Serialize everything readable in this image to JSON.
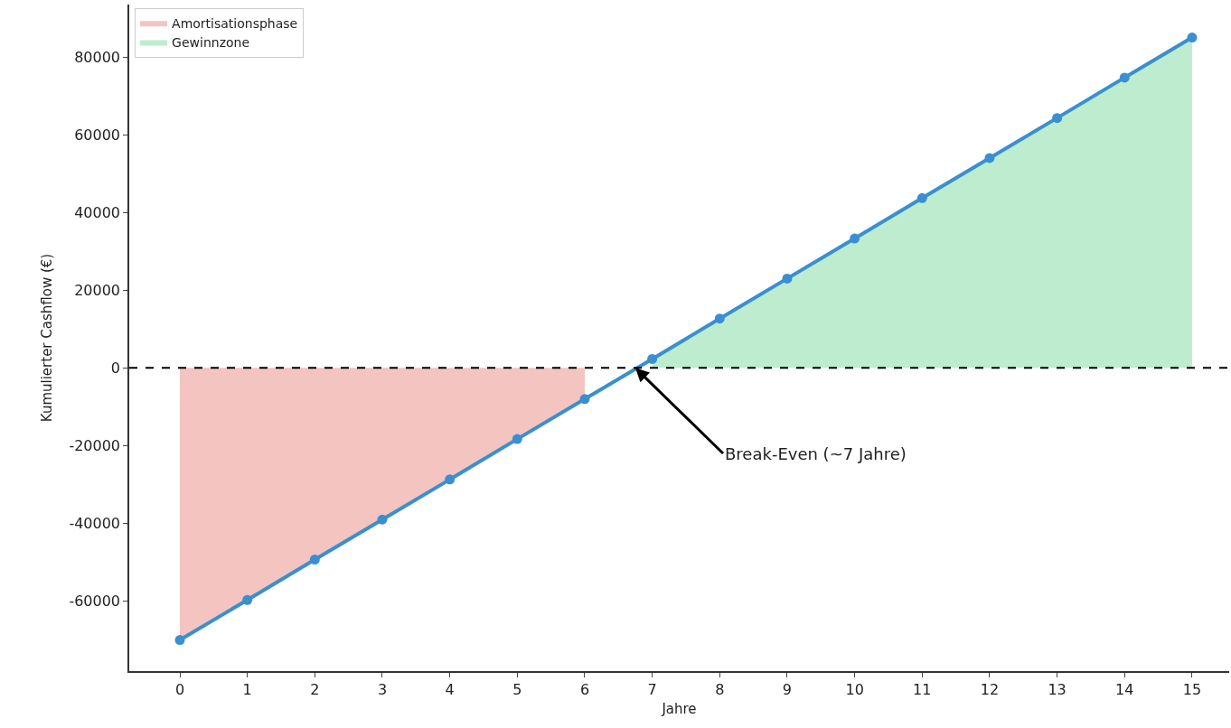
{
  "chart_data": {
    "type": "line",
    "xlabel": "Jahre",
    "ylabel": "Kumulierter Cashflow (€)",
    "x": [
      0,
      1,
      2,
      3,
      4,
      5,
      6,
      7,
      8,
      9,
      10,
      11,
      12,
      13,
      14,
      15
    ],
    "series": [
      {
        "type": "area",
        "name": "Amortisationsphase",
        "color": "#f4c4c0",
        "x": [
          0,
          1,
          2,
          3,
          4,
          5,
          6
        ],
        "values": [
          -70000,
          -59700,
          -49300,
          -39000,
          -28700,
          -18300,
          -8000
        ]
      },
      {
        "type": "area",
        "name": "Gewinnzone",
        "color": "#bdeccf",
        "x": [
          7,
          8,
          9,
          10,
          11,
          12,
          13,
          14,
          15
        ],
        "values": [
          2300,
          12700,
          23000,
          33300,
          43700,
          54000,
          64300,
          74700,
          85000
        ]
      },
      {
        "color": "#3a8fd0",
        "marker": "circle",
        "line_style": "solid",
        "values": [
          -70000,
          -59700,
          -49300,
          -39000,
          -28700,
          -18300,
          -8000,
          2300,
          12700,
          23000,
          33300,
          43700,
          54000,
          64300,
          74700,
          85000
        ]
      }
    ],
    "ref_lines": [
      {
        "axis": "y",
        "value": 0,
        "color": "#000000",
        "line_style": "dashed"
      }
    ],
    "annotations": [
      {
        "text": "Break-Even (~7 Jahre)",
        "x": 6.75,
        "y": 0
      }
    ],
    "xlim": [
      -0.75,
      15.55
    ],
    "xticks": [
      0,
      1,
      2,
      3,
      4,
      5,
      6,
      7,
      8,
      9,
      10,
      11,
      12,
      13,
      14,
      15
    ],
    "ylim": [
      -78000,
      93500
    ],
    "yticks": [
      -60000,
      -40000,
      -20000,
      0,
      20000,
      40000,
      60000,
      80000
    ],
    "grid": false,
    "legend": "top left"
  }
}
